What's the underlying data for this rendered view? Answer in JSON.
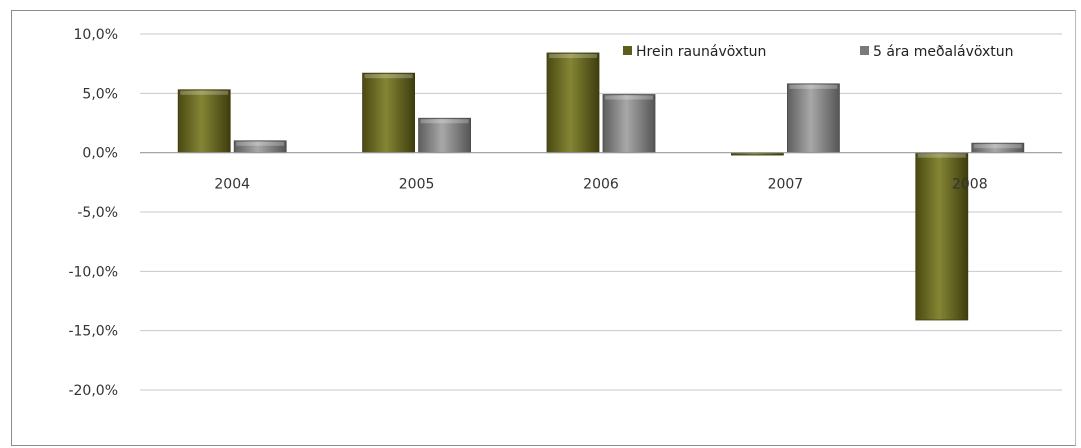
{
  "chart_data": {
    "type": "bar",
    "title": "",
    "xlabel": "",
    "ylabel": "",
    "categories": [
      "2004",
      "2005",
      "2006",
      "2007",
      "2008"
    ],
    "series": [
      {
        "name": "Hrein raunávöxtun",
        "values": [
          5.3,
          6.7,
          8.4,
          -0.2,
          -14.1
        ]
      },
      {
        "name": "5 ára meðalávöxtun",
        "values": [
          1.0,
          2.9,
          4.9,
          5.8,
          0.8
        ]
      }
    ],
    "ylim": [
      -20,
      10
    ],
    "yticks": [
      10,
      5,
      0,
      -5,
      -10,
      -15,
      -20
    ],
    "ytick_labels": [
      "10,0%",
      "5,0%",
      "0,0%",
      "-5,0%",
      "-10,0%",
      "-15,0%",
      "-20,0%"
    ],
    "grid": true,
    "legend_position": "top-right",
    "colors": [
      "#6b6b22",
      "#8a8a8a"
    ]
  }
}
